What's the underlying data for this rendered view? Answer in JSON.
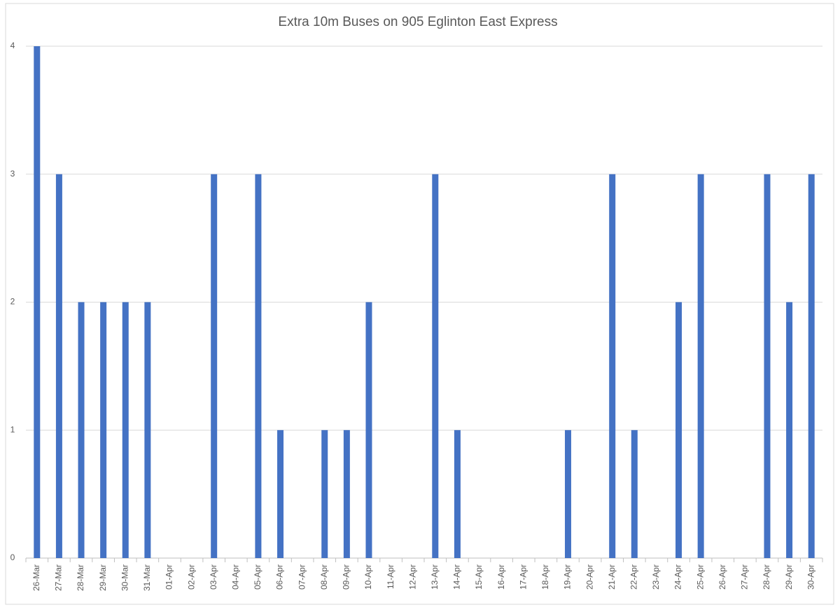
{
  "chart_data": {
    "type": "bar",
    "title": "Extra 10m Buses on 905 Eglinton East Express",
    "categories": [
      "26-Mar",
      "27-Mar",
      "28-Mar",
      "29-Mar",
      "30-Mar",
      "31-Mar",
      "01-Apr",
      "02-Apr",
      "03-Apr",
      "04-Apr",
      "05-Apr",
      "06-Apr",
      "07-Apr",
      "08-Apr",
      "09-Apr",
      "10-Apr",
      "11-Apr",
      "12-Apr",
      "13-Apr",
      "14-Apr",
      "15-Apr",
      "16-Apr",
      "17-Apr",
      "18-Apr",
      "19-Apr",
      "20-Apr",
      "21-Apr",
      "22-Apr",
      "23-Apr",
      "24-Apr",
      "25-Apr",
      "26-Apr",
      "27-Apr",
      "28-Apr",
      "29-Apr",
      "30-Apr"
    ],
    "values": [
      4,
      3,
      2,
      2,
      2,
      2,
      0,
      0,
      3,
      0,
      3,
      1,
      0,
      1,
      1,
      2,
      0,
      0,
      3,
      1,
      0,
      0,
      0,
      0,
      1,
      0,
      3,
      1,
      0,
      2,
      3,
      0,
      0,
      3,
      2,
      3
    ],
    "color": "#4472c4",
    "ylim": [
      0,
      4
    ],
    "yticks": [
      0,
      1,
      2,
      3,
      4
    ],
    "grid": true
  }
}
